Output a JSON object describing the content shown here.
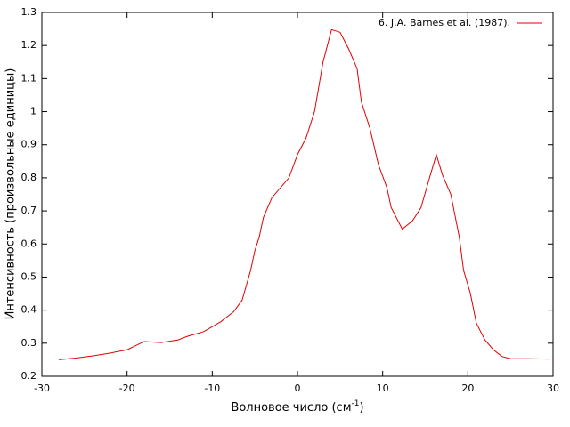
{
  "chart_data": {
    "type": "line",
    "x_label": "Волновое число (см",
    "x_label_sup": "-1",
    "x_label_end": ")",
    "y_label": "Интенсивность (произвольные единицы)",
    "xlim": [
      -30,
      30
    ],
    "xticks": [
      -30,
      -20,
      -10,
      0,
      10,
      20,
      30
    ],
    "ylim": [
      0.2,
      1.3
    ],
    "yticks": [
      0.2,
      0.3,
      0.4,
      0.5,
      0.6,
      0.7,
      0.8,
      0.9,
      1,
      1.1,
      1.2,
      1.3
    ],
    "legend": "top-right",
    "x": [
      -28,
      -26,
      -24,
      -22,
      -20,
      -18,
      -16,
      -14,
      -13,
      -11,
      -9,
      -7.5,
      -6.5,
      -5.5,
      -5,
      -4.5,
      -4,
      -3,
      -1,
      0,
      1,
      2,
      3,
      4,
      5,
      6,
      7,
      7.5,
      8.5,
      9.5,
      10.5,
      11,
      12.3,
      13.5,
      14.5,
      15.5,
      16.3,
      17,
      18,
      19,
      19.5,
      20.3,
      21,
      22,
      23,
      24,
      25,
      27,
      29.5
    ],
    "series": [
      {
        "name": "6. J.A. Barnes et al. (1987).",
        "color": "#e00000",
        "values": [
          0.25,
          0.255,
          0.262,
          0.27,
          0.28,
          0.305,
          0.302,
          0.31,
          0.32,
          0.335,
          0.365,
          0.395,
          0.43,
          0.52,
          0.58,
          0.62,
          0.68,
          0.74,
          0.8,
          0.87,
          0.92,
          1.0,
          1.15,
          1.248,
          1.24,
          1.19,
          1.13,
          1.03,
          0.95,
          0.84,
          0.77,
          0.71,
          0.645,
          0.67,
          0.71,
          0.8,
          0.87,
          0.81,
          0.75,
          0.62,
          0.52,
          0.45,
          0.36,
          0.31,
          0.28,
          0.26,
          0.253,
          0.253,
          0.252
        ]
      }
    ]
  }
}
